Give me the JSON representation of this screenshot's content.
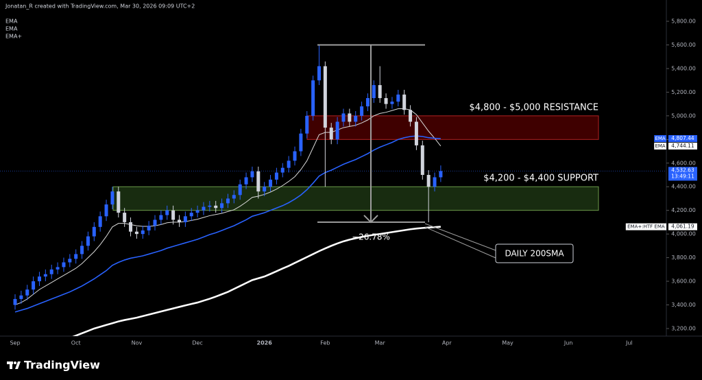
{
  "header": "Jonatan_R created with TradingView.com, Mar 30, 2026 09:09 UTC+2",
  "brand": "TradingView",
  "chart_data": {
    "type": "candlestick",
    "legend": [
      "EMA",
      "EMA",
      "EMA+"
    ],
    "categories": [
      "Sep",
      null,
      null,
      null,
      null,
      null,
      null,
      null,
      null,
      null,
      "Oct",
      null,
      null,
      null,
      null,
      null,
      null,
      null,
      null,
      null,
      "Nov",
      null,
      null,
      null,
      null,
      null,
      null,
      null,
      null,
      null,
      "Dec",
      null,
      null,
      null,
      null,
      null,
      null,
      null,
      null,
      null,
      null,
      "2026",
      null,
      null,
      null,
      null,
      null,
      null,
      null,
      null,
      null,
      "Feb",
      null,
      null,
      null,
      null,
      null,
      null,
      null,
      null,
      "Mar",
      null,
      null,
      null,
      null,
      null,
      null,
      null,
      null,
      null,
      null,
      "Apr",
      null,
      null,
      null,
      null,
      null,
      null,
      null,
      null,
      null,
      "May",
      null,
      null,
      null,
      null,
      null,
      null,
      null,
      null,
      null,
      "Jun",
      null,
      null,
      null,
      null,
      null,
      null,
      null,
      null,
      null,
      "Jul",
      null,
      null,
      null,
      null
    ],
    "open": [
      3400,
      3450,
      3480,
      3530,
      3600,
      3640,
      3660,
      3700,
      3720,
      3760,
      3790,
      3830,
      3900,
      3980,
      4060,
      4150,
      4250,
      4360,
      4180,
      4100,
      4020,
      4000,
      4030,
      4070,
      4120,
      4160,
      4200,
      4120,
      4100,
      4150,
      4180,
      4200,
      4230,
      4240,
      4220,
      4260,
      4300,
      4330,
      4420,
      4480,
      4530,
      4360,
      4400,
      4460,
      4520,
      4560,
      4620,
      4700,
      4850,
      5000,
      5300,
      5420,
      4900,
      4800,
      4950,
      5020,
      4950,
      5000,
      5080,
      5150,
      5260,
      5150,
      5100,
      5120,
      5180,
      5050,
      4950,
      4750,
      4500,
      4400,
      4480,
      null,
      null,
      null,
      null,
      null,
      null,
      null,
      null,
      null,
      null,
      null,
      null,
      null,
      null,
      null,
      null,
      null,
      null,
      null,
      null,
      null,
      null,
      null,
      null,
      null,
      null,
      null,
      null,
      null,
      null,
      null,
      null,
      null,
      null,
      null
    ],
    "high": [
      3490,
      3520,
      3570,
      3640,
      3680,
      3700,
      3740,
      3760,
      3800,
      3830,
      3870,
      3940,
      4020,
      4100,
      4190,
      4290,
      4400,
      4400,
      4220,
      4140,
      4060,
      4070,
      4110,
      4160,
      4200,
      4240,
      4240,
      4160,
      4190,
      4220,
      4240,
      4270,
      4280,
      4280,
      4300,
      4340,
      4370,
      4460,
      4520,
      4570,
      4570,
      4440,
      4500,
      4560,
      4600,
      4660,
      4740,
      4890,
      5040,
      5340,
      5600,
      5460,
      4940,
      4990,
      5060,
      5060,
      5040,
      5120,
      5190,
      5300,
      5420,
      5190,
      5160,
      5220,
      5220,
      5090,
      4990,
      4790,
      4540,
      4520,
      4580,
      null,
      null,
      null,
      null,
      null,
      null,
      null,
      null,
      null,
      null,
      null,
      null,
      null,
      null,
      null,
      null,
      null,
      null,
      null,
      null,
      null,
      null,
      null,
      null,
      null,
      null,
      null,
      null,
      null,
      null,
      null,
      null,
      null,
      null,
      null
    ],
    "low": [
      3360,
      3410,
      3440,
      3490,
      3560,
      3600,
      3620,
      3660,
      3680,
      3720,
      3750,
      3790,
      3860,
      3940,
      4020,
      4110,
      4210,
      4140,
      4060,
      3980,
      3960,
      3960,
      3990,
      4030,
      4080,
      4120,
      4080,
      4060,
      4060,
      4110,
      4140,
      4160,
      4190,
      4180,
      4180,
      4220,
      4260,
      4290,
      4380,
      4440,
      4300,
      4320,
      4360,
      4420,
      4480,
      4520,
      4580,
      4660,
      4810,
      4960,
      5260,
      4400,
      4760,
      4760,
      4910,
      4910,
      4910,
      4960,
      5040,
      5110,
      5110,
      5060,
      5060,
      5080,
      5010,
      4910,
      4710,
      4460,
      4100,
      4360,
      4440,
      null,
      null,
      null,
      null,
      null,
      null,
      null,
      null,
      null,
      null,
      null,
      null,
      null,
      null,
      null,
      null,
      null,
      null,
      null,
      null,
      null,
      null,
      null,
      null,
      null,
      null,
      null,
      null,
      null,
      null,
      null,
      null,
      null,
      null,
      null
    ],
    "close": [
      3450,
      3480,
      3530,
      3600,
      3640,
      3660,
      3700,
      3720,
      3760,
      3790,
      3830,
      3900,
      3980,
      4060,
      4150,
      4250,
      4360,
      4180,
      4100,
      4020,
      4000,
      4030,
      4070,
      4120,
      4160,
      4200,
      4120,
      4100,
      4150,
      4180,
      4200,
      4230,
      4240,
      4220,
      4260,
      4300,
      4330,
      4420,
      4480,
      4530,
      4360,
      4400,
      4460,
      4520,
      4560,
      4620,
      4700,
      4850,
      5000,
      5300,
      5420,
      4900,
      4800,
      4950,
      5020,
      4950,
      5000,
      5080,
      5150,
      5260,
      5150,
      5100,
      5120,
      5180,
      5050,
      4950,
      4750,
      4500,
      4400,
      4480,
      4532.63,
      null,
      null,
      null,
      null,
      null,
      null,
      null,
      null,
      null,
      null,
      null,
      null,
      null,
      null,
      null,
      null,
      null,
      null,
      null,
      null,
      null,
      null,
      null,
      null,
      null,
      null,
      null,
      null,
      null,
      null,
      null,
      null,
      null,
      null,
      null
    ],
    "up_color": "#2962ff",
    "down_color": "#d1d4dc",
    "price_tag": {
      "label": "4,532.63",
      "countdown": "13:49:11",
      "color": "#2962ff"
    },
    "overlays": [
      {
        "color": "#d9d9d9",
        "width": 1,
        "tag": {
          "name": "EMA",
          "label": "4,744.11",
          "bg": "#ffffff",
          "fg": "#131722"
        },
        "values": [
          3400,
          3420,
          3450,
          3490,
          3530,
          3560,
          3590,
          3620,
          3650,
          3680,
          3710,
          3750,
          3800,
          3850,
          3910,
          3980,
          4060,
          4090,
          4090,
          4080,
          4070,
          4065,
          4065,
          4070,
          4080,
          4095,
          4100,
          4100,
          4105,
          4115,
          4125,
          4140,
          4155,
          4165,
          4175,
          4190,
          4205,
          4235,
          4270,
          4310,
          4320,
          4335,
          4355,
          4380,
          4410,
          4445,
          4485,
          4545,
          4620,
          4730,
          4840,
          4860,
          4860,
          4880,
          4900,
          4910,
          4920,
          4940,
          4965,
          5000,
          5020,
          5030,
          5045,
          5060,
          5060,
          5050,
          5010,
          4940,
          4870,
          4810,
          4744.11,
          null,
          null,
          null,
          null,
          null,
          null,
          null,
          null,
          null,
          null,
          null,
          null,
          null,
          null,
          null,
          null,
          null,
          null,
          null,
          null,
          null,
          null,
          null,
          null,
          null,
          null,
          null,
          null,
          null,
          null,
          null,
          null,
          null,
          null,
          null
        ]
      },
      {
        "color": "#2962ff",
        "width": 1.6,
        "tag": {
          "name": "EMA",
          "label": "4,807.44",
          "bg": "#2962ff",
          "fg": "#ffffff"
        },
        "values": [
          3340,
          3355,
          3370,
          3390,
          3410,
          3430,
          3450,
          3470,
          3490,
          3510,
          3535,
          3560,
          3590,
          3620,
          3655,
          3690,
          3735,
          3760,
          3780,
          3795,
          3805,
          3815,
          3830,
          3845,
          3860,
          3880,
          3895,
          3910,
          3925,
          3940,
          3955,
          3975,
          3995,
          4010,
          4030,
          4050,
          4070,
          4095,
          4120,
          4150,
          4165,
          4180,
          4200,
          4220,
          4240,
          4265,
          4295,
          4330,
          4375,
          4430,
          4490,
          4520,
          4540,
          4565,
          4590,
          4610,
          4630,
          4655,
          4680,
          4710,
          4735,
          4755,
          4775,
          4800,
          4815,
          4825,
          4830,
          4825,
          4815,
          4810,
          4807.44,
          null,
          null,
          null,
          null,
          null,
          null,
          null,
          null,
          null,
          null,
          null,
          null,
          null,
          null,
          null,
          null,
          null,
          null,
          null,
          null,
          null,
          null,
          null,
          null,
          null,
          null,
          null,
          null,
          null,
          null,
          null,
          null,
          null,
          null,
          null
        ]
      },
      {
        "color": "#ffffff",
        "width": 2.6,
        "tag": {
          "name": "EMA+:HTF EMA",
          "label": "4,061.19",
          "bg": "#ffffff",
          "fg": "#131722"
        },
        "values": [
          null,
          null,
          null,
          null,
          null,
          null,
          null,
          null,
          null,
          3120,
          3140,
          3160,
          3180,
          3200,
          3215,
          3230,
          3245,
          3260,
          3272,
          3282,
          3292,
          3305,
          3318,
          3331,
          3344,
          3357,
          3370,
          3383,
          3396,
          3408,
          3420,
          3436,
          3452,
          3470,
          3490,
          3510,
          3535,
          3560,
          3585,
          3610,
          3625,
          3640,
          3662,
          3685,
          3708,
          3730,
          3755,
          3780,
          3805,
          3830,
          3855,
          3878,
          3900,
          3920,
          3938,
          3952,
          3964,
          3975,
          3985,
          3993,
          4000,
          4008,
          4016,
          4024,
          4032,
          4040,
          4046,
          4051,
          4055,
          4058,
          4061.19,
          null,
          null,
          null,
          null,
          null,
          null,
          null,
          null,
          null,
          null,
          null,
          null,
          null,
          null,
          null,
          null,
          null,
          null,
          null,
          null,
          null,
          null,
          null,
          null,
          null,
          null,
          null,
          null,
          null,
          null,
          null,
          null,
          null,
          null,
          null
        ]
      }
    ],
    "zones": [
      {
        "label": "$4,800 - $5,000 RESISTANCE",
        "low": 4800,
        "high": 5000,
        "fill": "rgba(139,0,0,0.45)",
        "stroke": "#b22222"
      },
      {
        "label": "$4,200 - $4,400 SUPPORT",
        "low": 4200,
        "high": 4400,
        "fill": "rgba(60,110,40,0.4)",
        "stroke": "#6b9a4a"
      }
    ],
    "measure": {
      "from": 5600,
      "to": 4100,
      "label": "−26.78%"
    },
    "callout": {
      "label": "DAILY 200SMA"
    },
    "ylim": [
      3136,
      5864
    ],
    "yticks": [
      {
        "value": 3200,
        "label": "3,200.00"
      },
      {
        "value": 3400,
        "label": "3,400.00"
      },
      {
        "value": 3600,
        "label": "3,600.00"
      },
      {
        "value": 3800,
        "label": "3,800.00"
      },
      {
        "value": 4000,
        "label": "4,000.00"
      },
      {
        "value": 4200,
        "label": "4,200.00"
      },
      {
        "value": 4400,
        "label": "4,400.00"
      },
      {
        "value": 4600,
        "label": "4,600.00"
      },
      {
        "value": 4800,
        "label": "4,800.00"
      },
      {
        "value": 5000,
        "label": "5,000.00"
      },
      {
        "value": 5200,
        "label": "5,200.00"
      },
      {
        "value": 5400,
        "label": "5,400.00"
      },
      {
        "value": 5600,
        "label": "5,600.00"
      },
      {
        "value": 5800,
        "label": "5,800.00"
      }
    ],
    "grid": false
  }
}
